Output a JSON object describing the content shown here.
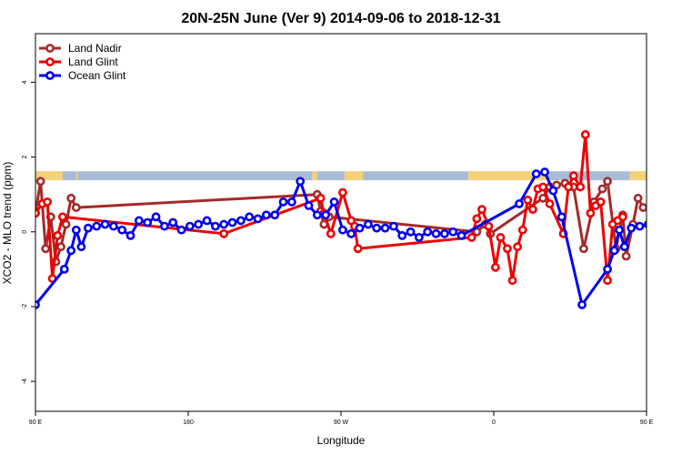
{
  "chart_data": {
    "type": "line",
    "title": "20N-25N June (Ver 9)   2014-09-06 to 2018-12-31",
    "xlabel": "Longitude",
    "ylabel": "XCO2 - MLO trend (ppm)",
    "xlim": [
      90,
      450
    ],
    "ylim": [
      -4.8,
      5.3
    ],
    "x_ticks": [
      {
        "value": 90,
        "label": "90 E"
      },
      {
        "value": 180,
        "label": "180"
      },
      {
        "value": 270,
        "label": "90 W"
      },
      {
        "value": 360,
        "label": "0"
      },
      {
        "value": 450,
        "label": "90 E"
      },
      {
        "value": 540,
        "label": "180"
      }
    ],
    "y_ticks": [
      {
        "value": -4,
        "label": "-4"
      },
      {
        "value": -2,
        "label": "-2"
      },
      {
        "value": 0,
        "label": "0"
      },
      {
        "value": 2,
        "label": "2"
      },
      {
        "value": 4,
        "label": "4"
      }
    ],
    "grid": false,
    "legend_position": "top-left",
    "land_band": {
      "y_range": [
        1.38,
        1.62
      ],
      "ocean_color": "#a8bcd8",
      "land_color": "#f5d27a",
      "land_segments": [
        [
          90,
          106
        ],
        [
          114,
          115
        ],
        [
          253,
          256
        ],
        [
          272,
          283
        ],
        [
          345,
          392
        ],
        [
          440,
          457
        ],
        [
          474,
          487
        ]
      ]
    },
    "series": [
      {
        "name": "Land Nadir",
        "color": "#a52a2a",
        "points": [
          [
            90,
            0.5
          ],
          [
            93,
            1.35
          ],
          [
            96,
            -0.45
          ],
          [
            99,
            0.4
          ],
          [
            102,
            -0.8
          ],
          [
            105,
            -0.4
          ],
          [
            108,
            0.2
          ],
          [
            111,
            0.9
          ],
          [
            114,
            0.65
          ],
          [
            256,
            1.0
          ],
          [
            258,
            0.55
          ],
          [
            260,
            0.2
          ],
          [
            263,
            0.4
          ],
          [
            350,
            0.0
          ],
          [
            355,
            0.2
          ],
          [
            358,
            -0.05
          ],
          [
            389,
            0.9
          ],
          [
            393,
            1.2
          ],
          [
            397,
            1.25
          ],
          [
            402,
            1.3
          ],
          [
            407,
            1.2
          ],
          [
            413,
            -0.45
          ],
          [
            419,
            0.8
          ],
          [
            424,
            1.15
          ],
          [
            427,
            1.35
          ],
          [
            432,
            -0.45
          ],
          [
            436,
            0.45
          ],
          [
            438,
            -0.65
          ],
          [
            442,
            0.2
          ],
          [
            445,
            0.9
          ],
          [
            448,
            0.65
          ]
        ]
      },
      {
        "name": "Land Glint",
        "color": "#ee0000",
        "points": [
          [
            90,
            0.5
          ],
          [
            94,
            0.75
          ],
          [
            97,
            0.8
          ],
          [
            100,
            -1.25
          ],
          [
            103,
            -0.1
          ],
          [
            106,
            0.4
          ],
          [
            201,
            -0.05
          ],
          [
            258,
            0.9
          ],
          [
            260,
            0.5
          ],
          [
            264,
            -0.05
          ],
          [
            271,
            1.05
          ],
          [
            276,
            0.3
          ],
          [
            278,
            0.15
          ],
          [
            280,
            -0.45
          ],
          [
            347,
            -0.15
          ],
          [
            350,
            0.35
          ],
          [
            353,
            0.6
          ],
          [
            357,
            0.15
          ],
          [
            361,
            -0.95
          ],
          [
            364,
            -0.15
          ],
          [
            368,
            -0.45
          ],
          [
            371,
            -1.3
          ],
          [
            374,
            -0.4
          ],
          [
            377,
            0.05
          ],
          [
            380,
            0.85
          ],
          [
            383,
            0.6
          ],
          [
            386,
            1.15
          ],
          [
            389,
            1.2
          ],
          [
            393,
            0.75
          ],
          [
            401,
            -0.05
          ],
          [
            404,
            1.2
          ],
          [
            407,
            1.5
          ],
          [
            411,
            1.2
          ],
          [
            414,
            2.6
          ],
          [
            417,
            0.5
          ],
          [
            420,
            0.7
          ],
          [
            423,
            0.8
          ],
          [
            427,
            -1.3
          ],
          [
            430,
            0.2
          ],
          [
            433,
            0.3
          ],
          [
            436,
            0.4
          ]
        ]
      },
      {
        "name": "Ocean Glint",
        "color": "#0000ee",
        "points": [
          [
            90,
            -1.95
          ],
          [
            107,
            -1.0
          ],
          [
            111,
            -0.5
          ],
          [
            114,
            0.05
          ],
          [
            117,
            -0.4
          ],
          [
            121,
            0.1
          ],
          [
            126,
            0.15
          ],
          [
            131,
            0.2
          ],
          [
            136,
            0.15
          ],
          [
            141,
            0.05
          ],
          [
            146,
            -0.1
          ],
          [
            151,
            0.3
          ],
          [
            156,
            0.25
          ],
          [
            161,
            0.4
          ],
          [
            166,
            0.15
          ],
          [
            171,
            0.25
          ],
          [
            176,
            0.05
          ],
          [
            181,
            0.15
          ],
          [
            186,
            0.2
          ],
          [
            191,
            0.3
          ],
          [
            196,
            0.15
          ],
          [
            201,
            0.2
          ],
          [
            206,
            0.25
          ],
          [
            211,
            0.3
          ],
          [
            216,
            0.4
          ],
          [
            221,
            0.35
          ],
          [
            226,
            0.45
          ],
          [
            231,
            0.45
          ],
          [
            236,
            0.8
          ],
          [
            241,
            0.8
          ],
          [
            246,
            1.35
          ],
          [
            251,
            0.7
          ],
          [
            256,
            0.45
          ],
          [
            261,
            0.45
          ],
          [
            266,
            0.8
          ],
          [
            271,
            0.05
          ],
          [
            276,
            -0.05
          ],
          [
            281,
            0.1
          ],
          [
            286,
            0.2
          ],
          [
            291,
            0.1
          ],
          [
            296,
            0.1
          ],
          [
            301,
            0.15
          ],
          [
            306,
            -0.1
          ],
          [
            311,
            0.0
          ],
          [
            316,
            -0.15
          ],
          [
            321,
            0.0
          ],
          [
            326,
            -0.05
          ],
          [
            331,
            -0.05
          ],
          [
            336,
            0.0
          ],
          [
            341,
            -0.1
          ],
          [
            375,
            0.75
          ],
          [
            385,
            1.55
          ],
          [
            390,
            1.6
          ],
          [
            395,
            1.1
          ],
          [
            400,
            0.4
          ],
          [
            412,
            -1.95
          ],
          [
            427,
            -1.0
          ],
          [
            431,
            -0.5
          ],
          [
            434,
            0.05
          ],
          [
            437,
            -0.4
          ],
          [
            441,
            0.1
          ],
          [
            446,
            0.15
          ],
          [
            451,
            0.2
          ],
          [
            456,
            0.15
          ],
          [
            461,
            0.05
          ],
          [
            466,
            -0.1
          ],
          [
            471,
            0.3
          ],
          [
            476,
            0.25
          ],
          [
            481,
            0.4
          ],
          [
            486,
            0.15
          ],
          [
            491,
            0.25
          ]
        ]
      }
    ]
  }
}
